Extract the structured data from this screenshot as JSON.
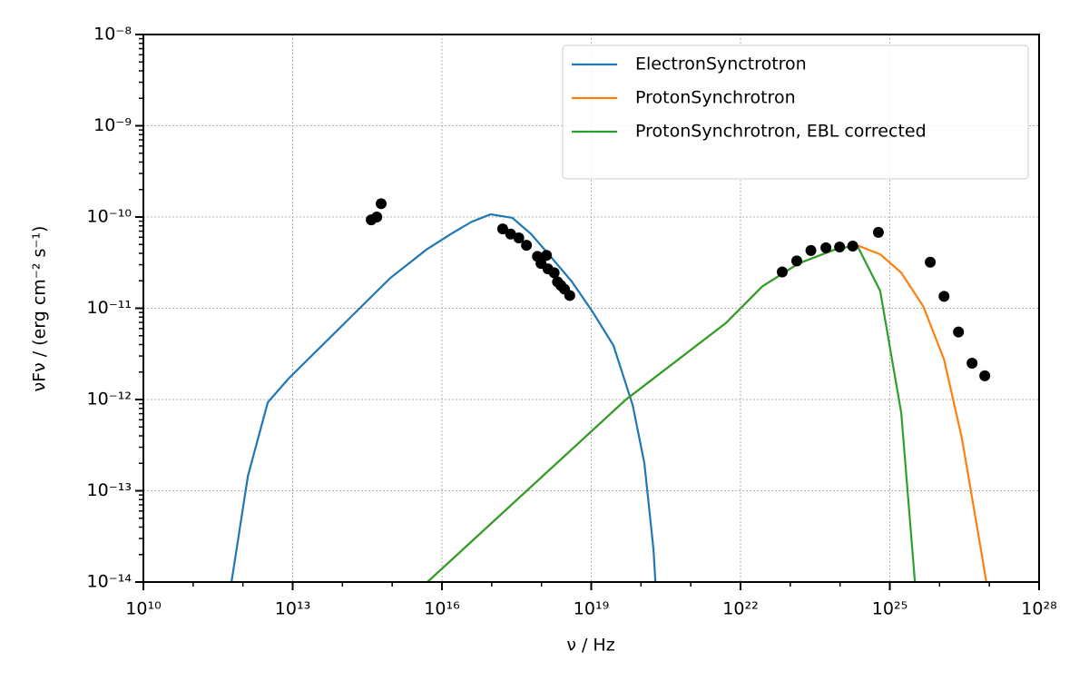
{
  "chart_data": {
    "type": "line",
    "xlabel": "ν / Hz",
    "ylabel": "νFν / (erg cm⁻² s⁻¹)",
    "log_x": true,
    "log_y": true,
    "grid": true,
    "minor_ticks": true,
    "legend": "upper right",
    "xlim": [
      10000000000.0,
      1e+28
    ],
    "ylim": [
      1e-14,
      1e-08
    ],
    "xticks": [
      {
        "value": 10000000000.0,
        "label": "10¹⁰"
      },
      {
        "value": 10000000000000.0,
        "label": "10¹³"
      },
      {
        "value": 1e+16,
        "label": "10¹⁶"
      },
      {
        "value": 1e+19,
        "label": "10¹⁹"
      },
      {
        "value": 1e+22,
        "label": "10²²"
      },
      {
        "value": 1e+25,
        "label": "10²⁵"
      },
      {
        "value": 1e+28,
        "label": "10²⁸"
      }
    ],
    "yticks": [
      {
        "value": 1e-14,
        "label": "10⁻¹⁴"
      },
      {
        "value": 1e-13,
        "label": "10⁻¹³"
      },
      {
        "value": 1e-12,
        "label": "10⁻¹²"
      },
      {
        "value": 1e-11,
        "label": "10⁻¹¹"
      },
      {
        "value": 1e-10,
        "label": "10⁻¹⁰"
      },
      {
        "value": 1e-09,
        "label": "10⁻⁹"
      },
      {
        "value": 1e-08,
        "label": "10⁻⁸"
      }
    ],
    "series": [
      {
        "name": "ElectronSynctrotron",
        "color": "#1f77b4",
        "x": [
          590000000000.0,
          1260000000000.0,
          3160000000000.0,
          8300000000000.0,
          910000000000000.0,
          4900000000000000.0,
          1.5e+16,
          4e+16,
          9.5e+16,
          2.6e+17,
          6.2e+17,
          1.4e+18,
          4.1e+18,
          1.07e+19,
          2.8e+19,
          6.8e+19,
          1.17e+20,
          1.78e+20,
          1.95e+20
        ],
        "values": [
          1e-14,
          1.45e-13,
          9.3e-13,
          1.7e-12,
          2.14e-11,
          4.4e-11,
          6.5e-11,
          8.9e-11,
          1.07e-10,
          9.8e-11,
          6.5e-11,
          3.9e-11,
          1.95e-11,
          9.1e-12,
          3.9e-12,
          8.7e-13,
          2e-13,
          2.3e-14,
          1e-14
        ]
      },
      {
        "name": "ProtonSynchrotron",
        "color": "#ff7f0e",
        "x": [
          5100000000000000.0,
          5e+19,
          5.1e+21,
          2.75e+22,
          1.48e+23,
          7.9e+23,
          2.2e+24,
          6.4e+24,
          1.7e+25,
          4.7e+25,
          1.23e+26,
          2.8e+26,
          7.1e+26,
          8.7e+26
        ],
        "values": [
          1e-14,
          1e-12,
          6.9e-12,
          1.74e-11,
          3.1e-11,
          4.4e-11,
          4.9e-11,
          3.9e-11,
          2.45e-11,
          1.05e-11,
          2.75e-12,
          3.8e-13,
          1.95e-14,
          1e-14
        ]
      },
      {
        "name": "ProtonSynchrotron, EBL corrected",
        "color": "#2ca02c",
        "x": [
          5100000000000000.0,
          5e+19,
          5.1e+21,
          2.75e+22,
          1.48e+23,
          7.9e+23,
          2.2e+24,
          6.4e+24,
          1.7e+25,
          3.2e+25
        ],
        "values": [
          1e-14,
          1e-12,
          6.9e-12,
          1.74e-11,
          3.1e-11,
          4.4e-11,
          4.9e-11,
          1.55e-11,
          7.1e-13,
          1e-14
        ]
      }
    ],
    "markers": {
      "color": "#000000",
      "x": [
        380000000000000.0,
        490000000000000.0,
        600000000000000.0,
        1.66e+17,
        2.4e+17,
        3.5e+17,
        5e+17,
        8.3e+17,
        9.8e+17,
        1.26e+18,
        1.35e+18,
        1.8e+18,
        2.1e+18,
        2.45e+18,
        2.9e+18,
        3.7e+18,
        6.9e+22,
        1.35e+23,
        2.6e+23,
        5.2e+23,
        9.8e+23,
        1.8e+24,
        5.9e+24,
        6.5e+25,
        1.23e+26,
        2.4e+26,
        4.5e+26,
        8.1e+26
      ],
      "values": [
        9.3e-11,
        1e-10,
        1.4e-10,
        7.4e-11,
        6.5e-11,
        5.9e-11,
        4.9e-11,
        3.7e-11,
        3.1e-11,
        3.8e-11,
        2.7e-11,
        2.45e-11,
        1.95e-11,
        1.78e-11,
        1.62e-11,
        1.38e-11,
        2.5e-11,
        3.3e-11,
        4.3e-11,
        4.6e-11,
        4.7e-11,
        4.8e-11,
        6.8e-11,
        3.2e-11,
        1.35e-11,
        5.5e-12,
        2.5e-12,
        1.82e-12
      ]
    }
  }
}
